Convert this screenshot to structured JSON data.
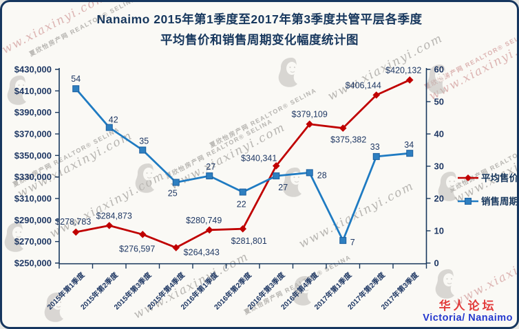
{
  "frame": {
    "background": "#FAF9F5",
    "border_color": "#16365E"
  },
  "title": {
    "line1": "Nanaimo 2015年第1季度至2017年第3季度共管平层各季度",
    "line2": "平均售价和销售周期变化幅度统计图",
    "color": "#17375D"
  },
  "chart_data": {
    "type": "line",
    "categories": [
      "2015年第1季度",
      "2015年第2季度",
      "2015年第3季度",
      "2015年第4季度",
      "2016年第1季度",
      "2016年第2季度",
      "2016年第3季度",
      "2016年第4季度",
      "2017年第1季度",
      "2017年第2季度",
      "2017年第3季度"
    ],
    "series": [
      {
        "name": "平均售价",
        "axis": "left",
        "color": "#C00000",
        "marker": "diamond",
        "values": [
          278783,
          284873,
          276597,
          264343,
          280749,
          281801,
          340341,
          379109,
          375382,
          406144,
          420132
        ],
        "labels": [
          "$278,783",
          "$284,873",
          "$276,597",
          "$264,343",
          "$280,749",
          "$281,801",
          "$340,341",
          "$379,109",
          "$375,382",
          "$406,144",
          "$420,132"
        ],
        "label_offsets": [
          [
            -4,
            -15
          ],
          [
            7,
            -14
          ],
          [
            -8,
            21
          ],
          [
            37,
            7
          ],
          [
            -8,
            -14
          ],
          [
            9,
            18
          ],
          [
            -25,
            -11
          ],
          [
            0,
            -14
          ],
          [
            8,
            17
          ],
          [
            -19,
            -14
          ],
          [
            -9,
            -14
          ]
        ]
      },
      {
        "name": "销售周期",
        "axis": "right",
        "color": "#1F7BC2",
        "marker": "square",
        "marker_fill": "#2E7FC0",
        "marker_stroke": "#1A5E9E",
        "values": [
          54,
          42,
          35,
          25,
          27,
          22,
          27,
          28,
          7,
          33,
          34
        ],
        "labels": [
          "54",
          "42",
          "35",
          "25",
          "27",
          "22",
          "27",
          "28",
          "7",
          "33",
          "34"
        ],
        "label_offsets": [
          [
            0,
            -14
          ],
          [
            6,
            -11
          ],
          [
            2,
            -13
          ],
          [
            -5,
            16
          ],
          [
            2,
            -13
          ],
          [
            -2,
            18
          ],
          [
            10,
            17
          ],
          [
            18,
            4
          ],
          [
            14,
            3
          ],
          [
            -2,
            -14
          ],
          [
            -1,
            -12
          ]
        ]
      }
    ],
    "left_axis": {
      "min": 250000,
      "max": 430000,
      "step": 20000,
      "labels": [
        "$430,000",
        "$410,000",
        "$390,000",
        "$370,000",
        "$350,000",
        "$330,000",
        "$310,000",
        "$290,000",
        "$270,000",
        "$250,000"
      ]
    },
    "right_axis": {
      "min": 0,
      "max": 60,
      "step": 10,
      "labels": [
        "60",
        "50",
        "40",
        "30",
        "20",
        "10",
        "0"
      ]
    },
    "legend": {
      "position": "right",
      "items": [
        "平均售价",
        "销售周期"
      ]
    },
    "grid": "off",
    "axis_color": "#17375D",
    "label_color": "#1F3864"
  },
  "watermark": {
    "brand": "夏欣怡房产网",
    "realtor": "REALTOR®",
    "agent": "SELINA",
    "url": "www.xiaxinyi.com"
  },
  "footer": {
    "forum": "华人论坛",
    "location": "Victoria/ Nanaimo",
    "forum_color": "#E23A3A",
    "location_color": "#2438CE"
  }
}
